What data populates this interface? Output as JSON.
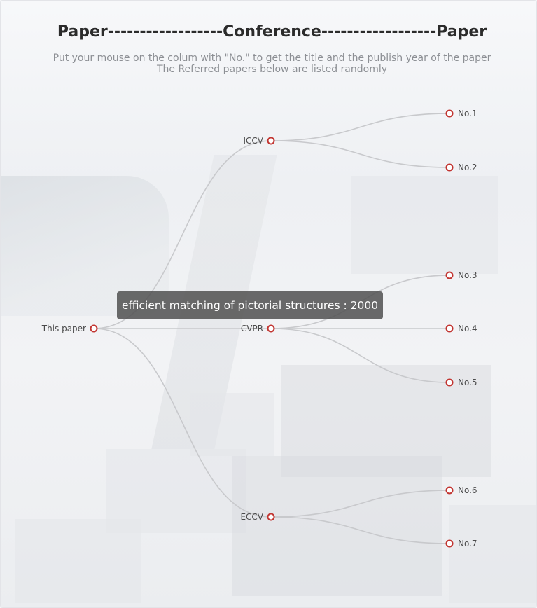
{
  "header": {
    "title": "Paper------------------Conference------------------Paper",
    "subtitle_line1": "Put your mouse on the colum with \"No.\" to get the title and the publish year of the paper",
    "subtitle_line2": "The Referred papers below are listed randomly"
  },
  "tree": {
    "root": {
      "id": "root",
      "label": "This paper"
    },
    "conferences": [
      {
        "id": "iccv",
        "label": "ICCV"
      },
      {
        "id": "cvpr",
        "label": "CVPR"
      },
      {
        "id": "eccv",
        "label": "ECCV"
      }
    ],
    "papers": [
      {
        "id": "p1",
        "label": "No.1",
        "parent": "iccv"
      },
      {
        "id": "p2",
        "label": "No.2",
        "parent": "iccv"
      },
      {
        "id": "p3",
        "label": "No.3",
        "parent": "cvpr"
      },
      {
        "id": "p4",
        "label": "No.4",
        "parent": "cvpr"
      },
      {
        "id": "p5",
        "label": "No.5",
        "parent": "cvpr"
      },
      {
        "id": "p6",
        "label": "No.6",
        "parent": "eccv"
      },
      {
        "id": "p7",
        "label": "No.7",
        "parent": "eccv"
      }
    ],
    "node_color": "#c23531",
    "link_color": "#c8c9cc"
  },
  "tooltip": {
    "text": "efficient matching of pictorial structures : 2000"
  }
}
